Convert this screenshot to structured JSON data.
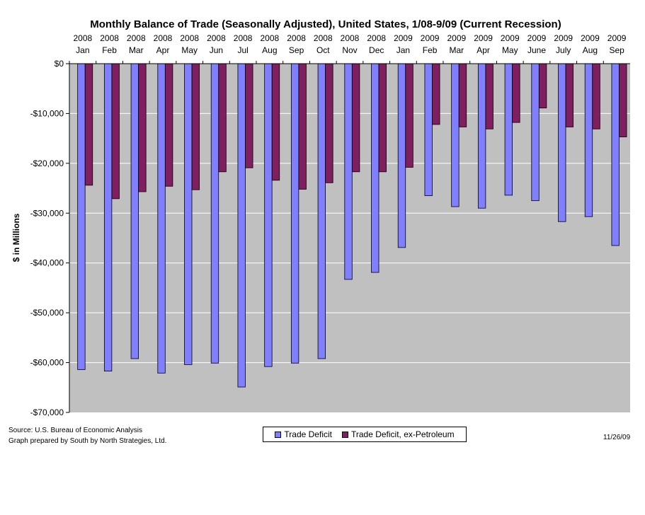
{
  "chart_data": {
    "type": "bar",
    "title": "Monthly Balance of Trade (Seasonally Adjusted), United States, 1/08-9/09 (Current Recession)",
    "ylabel": "$ in Millions",
    "ylim": [
      -70000,
      0
    ],
    "yticks": [
      "$0",
      "-$10,000",
      "-$20,000",
      "-$30,000",
      "-$40,000",
      "-$50,000",
      "-$60,000",
      "-$70,000"
    ],
    "categories": [
      {
        "year": "2008",
        "month": "Jan"
      },
      {
        "year": "2008",
        "month": "Feb"
      },
      {
        "year": "2008",
        "month": "Mar"
      },
      {
        "year": "2008",
        "month": "Apr"
      },
      {
        "year": "2008",
        "month": "May"
      },
      {
        "year": "2008",
        "month": "Jun"
      },
      {
        "year": "2008",
        "month": "Jul"
      },
      {
        "year": "2008",
        "month": "Aug"
      },
      {
        "year": "2008",
        "month": "Sep"
      },
      {
        "year": "2008",
        "month": "Oct"
      },
      {
        "year": "2008",
        "month": "Nov"
      },
      {
        "year": "2008",
        "month": "Dec"
      },
      {
        "year": "2009",
        "month": "Jan"
      },
      {
        "year": "2009",
        "month": "Feb"
      },
      {
        "year": "2009",
        "month": "Mar"
      },
      {
        "year": "2009",
        "month": "Apr"
      },
      {
        "year": "2009",
        "month": "May"
      },
      {
        "year": "2009",
        "month": "June"
      },
      {
        "year": "2009",
        "month": "July"
      },
      {
        "year": "2009",
        "month": "Aug"
      },
      {
        "year": "2009",
        "month": "Sep"
      }
    ],
    "series": [
      {
        "name": "Trade Deficit",
        "color": "#8080ff",
        "values": [
          -61400,
          -61700,
          -59200,
          -62100,
          -60400,
          -60100,
          -64900,
          -60800,
          -60100,
          -59200,
          -43300,
          -41900,
          -36900,
          -26500,
          -28700,
          -29000,
          -26400,
          -27500,
          -31700,
          -30700,
          -36500
        ]
      },
      {
        "name": "Trade Deficit, ex-Petroleum",
        "color": "#7f1f5f",
        "values": [
          -24400,
          -27100,
          -25700,
          -24600,
          -25300,
          -21700,
          -20900,
          -23400,
          -25200,
          -23900,
          -21700,
          -21700,
          -20800,
          -12200,
          -12700,
          -13100,
          -11800,
          -8900,
          -12700,
          -13100,
          -14700
        ]
      }
    ],
    "grid": true,
    "legend": "bottom-center"
  },
  "source_note": [
    "Source: U.S. Bureau of Economic Analysis",
    "Graph prepared by South by North Strategies, Ltd."
  ],
  "date_note": "11/26/09",
  "colors": {
    "plot_background": "#c0c0c0",
    "gridline": "#ffffff"
  }
}
